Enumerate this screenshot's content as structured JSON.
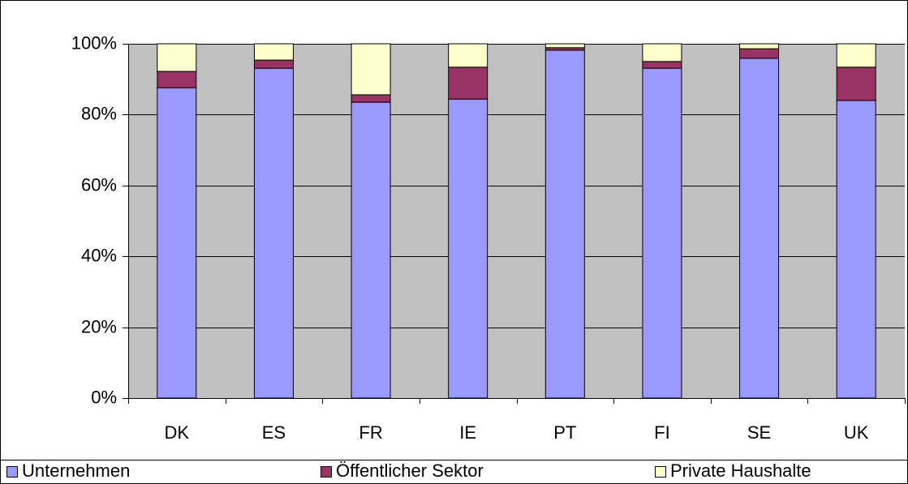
{
  "chart_data": {
    "type": "stacked_bar",
    "categories": [
      "DK",
      "ES",
      "FR",
      "IE",
      "PT",
      "FI",
      "SE",
      "UK"
    ],
    "series": [
      {
        "name": "Unternehmen",
        "color": "#9999ff",
        "values": [
          87.6,
          93.1,
          83.5,
          84.4,
          98.2,
          93.1,
          95.9,
          84.0
        ]
      },
      {
        "name": "Öffentlicher Sektor",
        "color": "#993366",
        "values": [
          4.6,
          2.3,
          2.1,
          9.0,
          0.7,
          1.9,
          2.7,
          9.4
        ]
      },
      {
        "name": "Private Haushalte",
        "color": "#ffffcc",
        "values": [
          7.8,
          4.6,
          14.4,
          6.6,
          1.1,
          5.0,
          1.4,
          6.6
        ]
      }
    ],
    "ylim": [
      0,
      100
    ],
    "yticks": [
      {
        "value": 0,
        "label": "0%"
      },
      {
        "value": 20,
        "label": "20%"
      },
      {
        "value": 40,
        "label": "40%"
      },
      {
        "value": 60,
        "label": "60%"
      },
      {
        "value": 80,
        "label": "80%"
      },
      {
        "value": 100,
        "label": "100%"
      }
    ],
    "grid": true,
    "legend": "bottom"
  }
}
